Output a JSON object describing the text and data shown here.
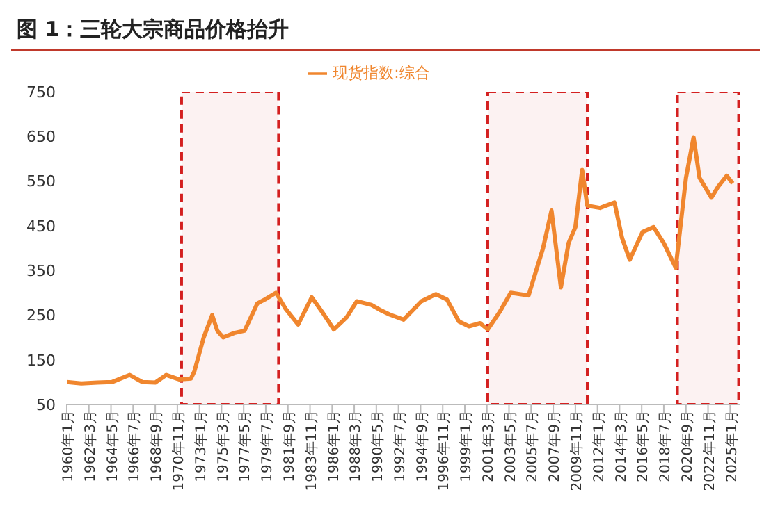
{
  "chart_data": {
    "type": "line",
    "title": "图 1：三轮大宗商品价格抬升",
    "x": [
      "1960-01",
      "1961-06",
      "1963-01",
      "1964-06",
      "1966-03",
      "1967-06",
      "1968-09",
      "1969-10",
      "1971-01",
      "1972-03",
      "1972-07",
      "1973-06",
      "1974-04",
      "1974-10",
      "1975-05",
      "1976-06",
      "1977-06",
      "1978-09",
      "1979-06",
      "1980-07",
      "1981-06",
      "1982-09",
      "1984-01",
      "1985-02",
      "1986-03",
      "1987-06",
      "1988-06",
      "1989-11",
      "1990-09",
      "1991-09",
      "1993-01",
      "1994-10",
      "1996-03",
      "1997-04",
      "1998-06",
      "1999-06",
      "2000-07",
      "2001-04",
      "2002-06",
      "2003-07",
      "2005-04",
      "2006-09",
      "2007-07",
      "2008-06",
      "2009-03",
      "2009-11",
      "2010-07",
      "2011-01",
      "2012-04",
      "2013-09",
      "2014-06",
      "2015-03",
      "2016-06",
      "2017-07",
      "2018-07",
      "2019-09",
      "2020-09",
      "2021-06",
      "2022-01",
      "2023-03",
      "2023-11",
      "2024-09",
      "2025-04"
    ],
    "series": [
      {
        "name": "现货指数:综合",
        "color": "#f0862e",
        "values": [
          100,
          97,
          99,
          100,
          116,
          100,
          99,
          116,
          106,
          108,
          124,
          200,
          250,
          215,
          200,
          210,
          215,
          276,
          285,
          300,
          265,
          229,
          290,
          255,
          218,
          245,
          281,
          273,
          262,
          251,
          240,
          281,
          297,
          285,
          236,
          225,
          232,
          218,
          257,
          300,
          294,
          400,
          484,
          312,
          411,
          447,
          575,
          495,
          490,
          502,
          422,
          374,
          436,
          447,
          411,
          356,
          557,
          648,
          557,
          513,
          538,
          562,
          545
        ]
      }
    ],
    "xlim": [
      "1960-01",
      "2026-01"
    ],
    "xticks": [
      {
        "value": "1960-01",
        "label": "1960年1月"
      },
      {
        "value": "1962-03",
        "label": "1962年3月"
      },
      {
        "value": "1964-05",
        "label": "1964年5月"
      },
      {
        "value": "1966-07",
        "label": "1966年7月"
      },
      {
        "value": "1968-09",
        "label": "1968年9月"
      },
      {
        "value": "1970-11",
        "label": "1970年11月"
      },
      {
        "value": "1973-01",
        "label": "1973年1月"
      },
      {
        "value": "1975-03",
        "label": "1975年3月"
      },
      {
        "value": "1977-05",
        "label": "1977年5月"
      },
      {
        "value": "1979-07",
        "label": "1979年7月"
      },
      {
        "value": "1981-09",
        "label": "1981年9月"
      },
      {
        "value": "1983-11",
        "label": "1983年11月"
      },
      {
        "value": "1986-01",
        "label": "1986年1月"
      },
      {
        "value": "1988-03",
        "label": "1988年3月"
      },
      {
        "value": "1990-05",
        "label": "1990年5月"
      },
      {
        "value": "1992-07",
        "label": "1992年7月"
      },
      {
        "value": "1994-09",
        "label": "1994年9月"
      },
      {
        "value": "1996-11",
        "label": "1996年11月"
      },
      {
        "value": "1999-01",
        "label": "1999年1月"
      },
      {
        "value": "2001-03",
        "label": "2001年3月"
      },
      {
        "value": "2003-05",
        "label": "2003年5月"
      },
      {
        "value": "2005-07",
        "label": "2005年7月"
      },
      {
        "value": "2007-09",
        "label": "2007年9月"
      },
      {
        "value": "2009-11",
        "label": "2009年11月"
      },
      {
        "value": "2012-01",
        "label": "2012年1月"
      },
      {
        "value": "2014-03",
        "label": "2014年3月"
      },
      {
        "value": "2016-05",
        "label": "2016年5月"
      },
      {
        "value": "2018-07",
        "label": "2018年7月"
      },
      {
        "value": "2020-09",
        "label": "2020年9月"
      },
      {
        "value": "2022-11",
        "label": "2022年11月"
      },
      {
        "value": "2025-01",
        "label": "2025年1月"
      }
    ],
    "ylim": [
      50,
      750
    ],
    "yticks": [
      50,
      150,
      250,
      350,
      450,
      550,
      650,
      750
    ],
    "bands": [
      {
        "axis": "x",
        "from": "1971-04",
        "to": "1980-10",
        "color": "#d42020"
      },
      {
        "axis": "x",
        "from": "2001-04",
        "to": "2011-01",
        "color": "#d42020"
      },
      {
        "axis": "x",
        "from": "2019-11",
        "to": "2025-11",
        "color": "#d42020"
      }
    ],
    "legend": "top",
    "marker": "none",
    "line_style": "solid",
    "grid": false
  }
}
